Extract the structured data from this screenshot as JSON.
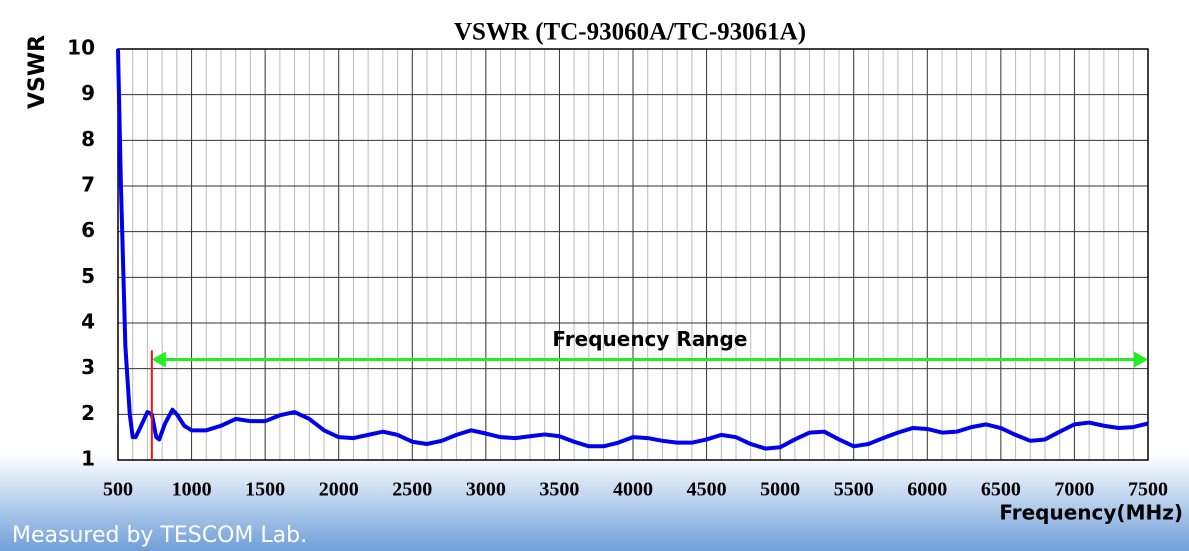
{
  "chart_data": {
    "type": "line",
    "title": "VSWR (TC-93060A/TC-93061A)",
    "y_label": "VSWR",
    "x_label": "Frequency(MHz)",
    "footer": "Measured by TESCOM Lab.",
    "xlim": [
      500,
      7500
    ],
    "xticks": [
      500,
      1000,
      1500,
      2000,
      2500,
      3000,
      3500,
      4000,
      4500,
      5000,
      5500,
      6000,
      6500,
      7000,
      7500
    ],
    "ylim": [
      1,
      10
    ],
    "yticks": [
      1,
      2,
      3,
      4,
      5,
      6,
      7,
      8,
      9,
      10
    ],
    "grid": true,
    "series": [
      {
        "name": "VSWR",
        "color": "#0000ee",
        "x": [
          500,
          520,
          550,
          580,
          600,
          620,
          650,
          700,
          730,
          760,
          780,
          820,
          870,
          900,
          950,
          1000,
          1100,
          1200,
          1300,
          1400,
          1500,
          1600,
          1700,
          1800,
          1900,
          2000,
          2100,
          2200,
          2300,
          2400,
          2500,
          2600,
          2700,
          2800,
          2900,
          3000,
          3100,
          3200,
          3300,
          3400,
          3500,
          3600,
          3700,
          3800,
          3900,
          4000,
          4100,
          4200,
          4300,
          4400,
          4500,
          4600,
          4700,
          4800,
          4900,
          5000,
          5100,
          5200,
          5300,
          5400,
          5500,
          5600,
          5700,
          5800,
          5900,
          6000,
          6100,
          6200,
          6300,
          6400,
          6500,
          6600,
          6700,
          6800,
          6900,
          7000,
          7100,
          7200,
          7300,
          7400,
          7500
        ],
        "values": [
          10,
          7,
          3.5,
          2,
          1.5,
          1.5,
          1.7,
          2.05,
          2.0,
          1.5,
          1.45,
          1.8,
          2.1,
          2.0,
          1.75,
          1.65,
          1.65,
          1.75,
          1.9,
          1.85,
          1.85,
          1.98,
          2.05,
          1.9,
          1.65,
          1.5,
          1.48,
          1.55,
          1.62,
          1.55,
          1.4,
          1.35,
          1.42,
          1.55,
          1.65,
          1.58,
          1.5,
          1.48,
          1.52,
          1.56,
          1.52,
          1.4,
          1.3,
          1.3,
          1.38,
          1.5,
          1.48,
          1.42,
          1.38,
          1.38,
          1.45,
          1.55,
          1.5,
          1.35,
          1.25,
          1.28,
          1.45,
          1.6,
          1.62,
          1.45,
          1.3,
          1.35,
          1.48,
          1.6,
          1.7,
          1.68,
          1.6,
          1.62,
          1.72,
          1.78,
          1.7,
          1.55,
          1.42,
          1.45,
          1.62,
          1.78,
          1.82,
          1.75,
          1.7,
          1.72,
          1.8
        ]
      }
    ],
    "annotations": [
      {
        "text": "Frequency Range",
        "x": [
          730,
          7500
        ],
        "y": 3.2,
        "color": "#22ee22"
      },
      {
        "x": 730,
        "y": [
          1,
          3.4
        ],
        "color": "#ee1111"
      }
    ]
  }
}
